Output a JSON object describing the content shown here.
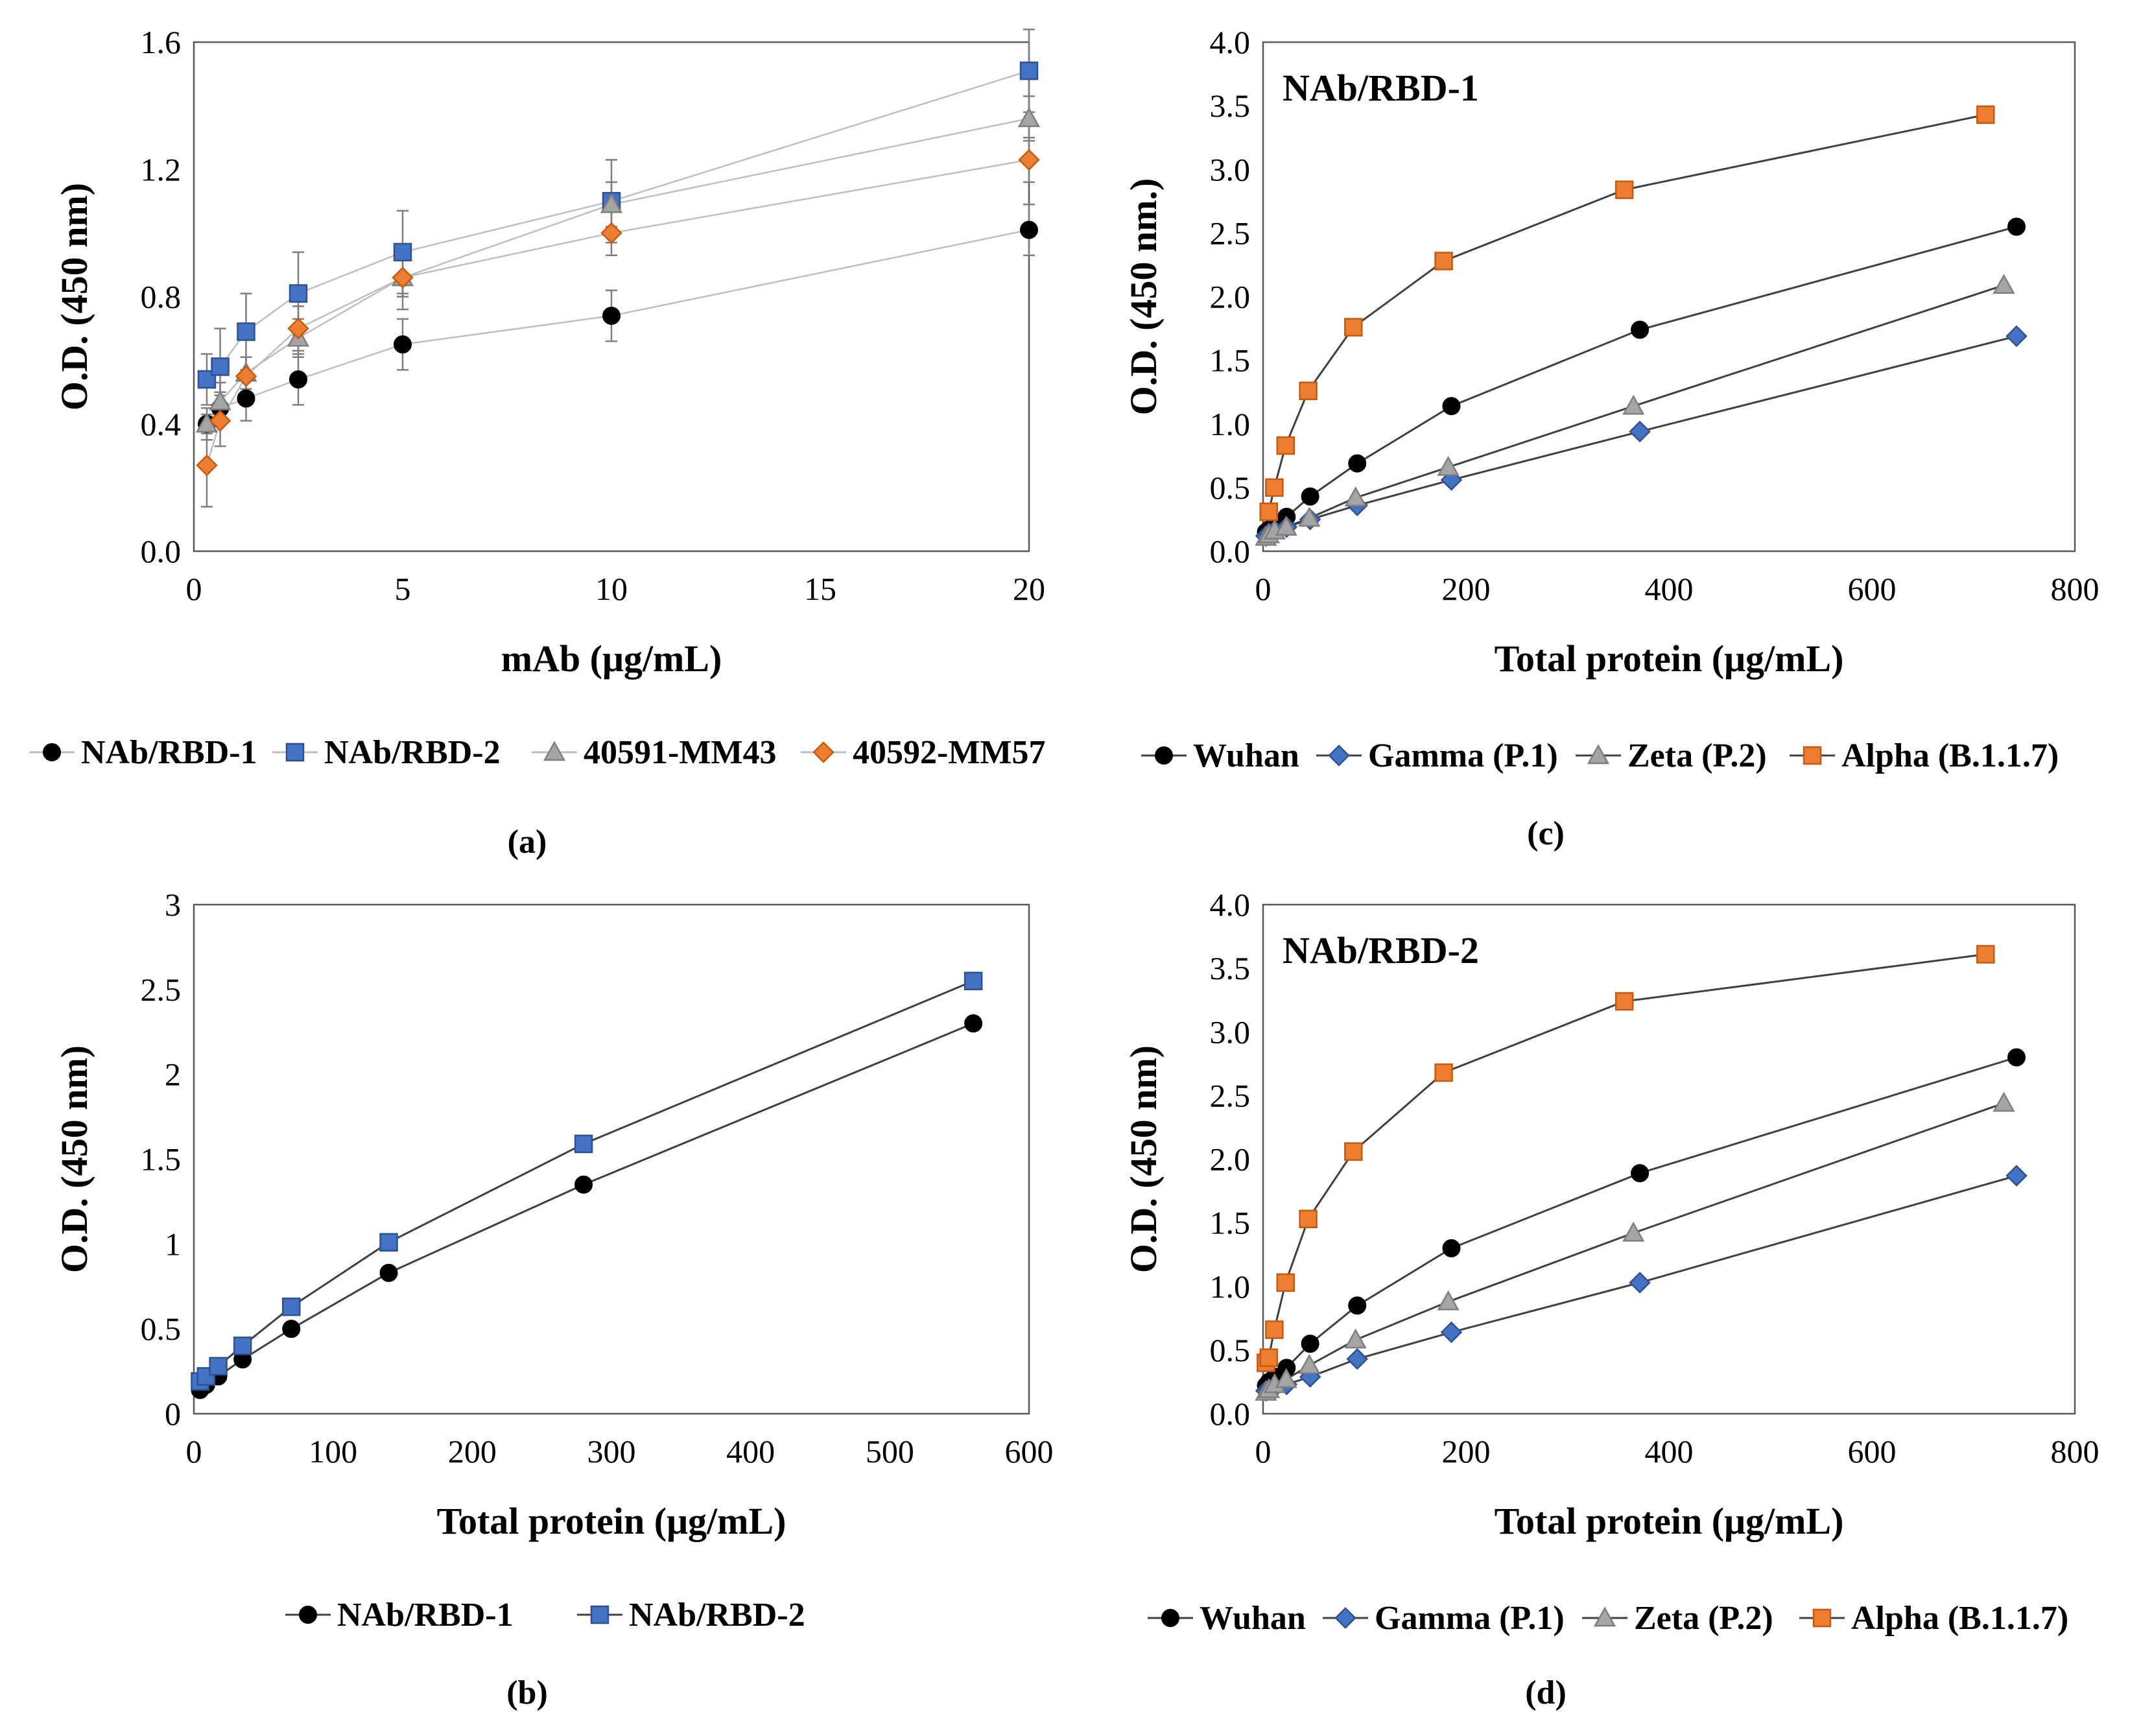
{
  "palette": {
    "black": "#000000",
    "blue": "#4472C4",
    "gray": "#A5A5A5",
    "orange": "#ED7D31",
    "frame": "#595959",
    "line": "#404040",
    "light_line": "#BFBFBF",
    "error_bar": "#7F7F7F"
  },
  "chart_data": [
    {
      "id": "a",
      "panel_label": "(a)",
      "type": "line",
      "title": "",
      "xlabel": "mAb (μg/mL)",
      "ylabel": "O.D. (450 nm)",
      "xlim": [
        0,
        20
      ],
      "ylim": [
        0,
        1.6
      ],
      "xticks": [
        0,
        5,
        10,
        15,
        20
      ],
      "xtick_labels": [
        "0",
        "5",
        "10",
        "15",
        "20"
      ],
      "yticks": [
        0,
        0.4,
        0.8,
        1.2,
        1.6
      ],
      "ytick_labels": [
        "0.0",
        "0.4",
        "0.8",
        "1.2",
        "1.6"
      ],
      "grid": false,
      "legend_position": "bottom",
      "line_style": "light",
      "series": [
        {
          "name": "NAb/RBD-1",
          "marker": "circle",
          "color": "#000000",
          "x": [
            0.31,
            0.63,
            1.25,
            2.5,
            5,
            10,
            20
          ],
          "y": [
            0.4,
            0.45,
            0.48,
            0.54,
            0.65,
            0.74,
            1.01
          ],
          "err": [
            0.03,
            0.05,
            0.07,
            0.08,
            0.08,
            0.08,
            0.08
          ]
        },
        {
          "name": "NAb/RBD-2",
          "marker": "square",
          "color": "#4472C4",
          "x": [
            0.31,
            0.63,
            1.25,
            2.5,
            5,
            10,
            20
          ],
          "y": [
            0.54,
            0.58,
            0.69,
            0.81,
            0.94,
            1.1,
            1.51
          ],
          "err": [
            0.08,
            0.12,
            0.12,
            0.13,
            0.13,
            0.13,
            0.13
          ]
        },
        {
          "name": "40591-MM43",
          "marker": "triangle",
          "color": "#A5A5A5",
          "x": [
            0.31,
            0.63,
            1.25,
            2.5,
            5,
            10,
            20
          ],
          "y": [
            0.4,
            0.47,
            0.56,
            0.67,
            0.86,
            1.09,
            1.36
          ],
          "err": [
            0.05,
            0.06,
            0.05,
            0.06,
            0.1,
            0.07,
            0.07
          ]
        },
        {
          "name": "40592-MM57",
          "marker": "diamond",
          "color": "#ED7D31",
          "x": [
            0.31,
            0.63,
            1.25,
            2.5,
            5,
            10,
            20
          ],
          "y": [
            0.27,
            0.41,
            0.55,
            0.7,
            0.86,
            1.0,
            1.23
          ],
          "err": [
            0.13,
            0.08,
            0.06,
            0.07,
            0.06,
            0.07,
            0.07
          ]
        }
      ]
    },
    {
      "id": "b",
      "panel_label": "(b)",
      "type": "line",
      "title": "",
      "xlabel": "Total protein (μg/mL)",
      "ylabel": "O.D. (450 nm)",
      "xlim": [
        0,
        600
      ],
      "ylim": [
        0,
        3
      ],
      "xticks": [
        0,
        100,
        200,
        300,
        400,
        500,
        600
      ],
      "xtick_labels": [
        "0",
        "100",
        "200",
        "300",
        "400",
        "500",
        "600"
      ],
      "yticks": [
        0,
        0.5,
        1,
        1.5,
        2,
        2.5,
        3
      ],
      "ytick_labels": [
        "0",
        "0.5",
        "1",
        "1.5",
        "2",
        "2.5",
        "3"
      ],
      "grid": false,
      "legend_position": "bottom",
      "line_style": "dark",
      "series": [
        {
          "name": "NAb/RBD-1",
          "marker": "circle",
          "color": "#000000",
          "x": [
            4.4,
            8.75,
            17.5,
            35,
            70,
            140,
            280,
            560
          ],
          "y": [
            0.14,
            0.17,
            0.22,
            0.32,
            0.5,
            0.83,
            1.35,
            2.3
          ]
        },
        {
          "name": "NAb/RBD-2",
          "marker": "square",
          "color": "#4472C4",
          "x": [
            4.4,
            8.75,
            17.5,
            35,
            70,
            140,
            280,
            560
          ],
          "y": [
            0.19,
            0.22,
            0.28,
            0.4,
            0.63,
            1.01,
            1.59,
            2.55
          ]
        }
      ]
    },
    {
      "id": "c",
      "panel_label": "(c)",
      "type": "line",
      "title": "NAb/RBD-1",
      "xlabel": "Total protein (μg/mL)",
      "ylabel": "O.D. (450 nm.)",
      "xlim": [
        0,
        800
      ],
      "ylim": [
        0,
        4
      ],
      "xticks": [
        0,
        200,
        400,
        600,
        800
      ],
      "xtick_labels": [
        "0",
        "200",
        "400",
        "600",
        "800"
      ],
      "yticks": [
        0,
        0.5,
        1,
        1.5,
        2,
        2.5,
        3,
        3.5,
        4
      ],
      "ytick_labels": [
        "0.0",
        "0.5",
        "1.0",
        "1.5",
        "2.0",
        "2.5",
        "3.0",
        "3.5",
        "4.0"
      ],
      "grid": false,
      "legend_position": "bottom",
      "line_style": "dark",
      "series": [
        {
          "name": "Wuhan",
          "marker": "circle",
          "color": "#000000",
          "x": [
            2.9,
            5.8,
            11.6,
            23.2,
            46.4,
            92.8,
            185.6,
            371.3,
            742.5
          ],
          "y": [
            0.15,
            0.17,
            0.21,
            0.27,
            0.43,
            0.69,
            1.14,
            1.74,
            2.55
          ]
        },
        {
          "name": "Gamma (P.1)",
          "marker": "diamond",
          "color": "#4472C4",
          "x": [
            2.9,
            5.8,
            11.6,
            23.2,
            46.4,
            92.8,
            185.6,
            371.3,
            742.5
          ],
          "y": [
            0.12,
            0.14,
            0.16,
            0.19,
            0.25,
            0.36,
            0.56,
            0.94,
            1.69
          ]
        },
        {
          "name": "Zeta (P.2)",
          "marker": "triangle",
          "color": "#A5A5A5",
          "x": [
            2.8,
            5.7,
            11.4,
            22.8,
            45.6,
            91.2,
            182.5,
            365,
            730
          ]
        },
        {
          "name": "Alpha (B.1.1.7)",
          "marker": "square",
          "color": "#ED7D31",
          "x": [
            2.8,
            5.6,
            11.1,
            22.2,
            44.5,
            89,
            178,
            356,
            712
          ]
        }
      ]
    },
    {
      "id": "d",
      "panel_label": "(d)",
      "type": "line",
      "title": "NAb/RBD-2",
      "xlabel": "Total protein (μg/mL)",
      "ylabel": "O.D. (450 nm)",
      "xlim": [
        0,
        800
      ],
      "ylim": [
        0,
        4
      ],
      "xticks": [
        0,
        200,
        400,
        600,
        800
      ],
      "xtick_labels": [
        "0",
        "200",
        "400",
        "600",
        "800"
      ],
      "yticks": [
        0,
        0.5,
        1,
        1.5,
        2,
        2.5,
        3,
        3.5,
        4
      ],
      "ytick_labels": [
        "0.0",
        "0.5",
        "1.0",
        "1.5",
        "2.0",
        "2.5",
        "3.0",
        "3.5",
        "4.0"
      ],
      "grid": false,
      "legend_position": "bottom",
      "line_style": "dark",
      "series": [
        {
          "name": "Wuhan",
          "marker": "circle",
          "color": "#000000",
          "x": [
            2.9,
            5.8,
            11.6,
            23.2,
            46.4,
            92.8,
            185.6,
            371.3,
            742.5
          ],
          "y": [
            0.22,
            0.25,
            0.29,
            0.36,
            0.55,
            0.85,
            1.3,
            1.89,
            2.8
          ]
        },
        {
          "name": "Gamma (P.1)",
          "marker": "diamond",
          "color": "#4472C4",
          "x": [
            2.9,
            5.8,
            11.6,
            23.2,
            46.4,
            92.8,
            185.6,
            371.3,
            742.5
          ],
          "y": [
            0.18,
            0.19,
            0.21,
            0.23,
            0.29,
            0.43,
            0.64,
            1.03,
            1.87
          ]
        },
        {
          "name": "Zeta (P.2)",
          "marker": "triangle",
          "color": "#A5A5A5",
          "x": [
            2.8,
            5.7,
            11.4,
            22.8,
            45.6,
            91.2,
            182.5,
            365,
            730
          ],
          "y": [
            0.17,
            0.19,
            0.23,
            0.27,
            0.38,
            0.58,
            0.88,
            1.42,
            2.44
          ]
        },
        {
          "name": "Alpha (B.1.1.7)",
          "marker": "square",
          "color": "#ED7D31",
          "x": [
            2.8,
            5.6,
            11.1,
            22.2,
            44.5,
            89,
            178,
            356,
            712
          ],
          "y": [
            0.4,
            0.44,
            0.66,
            1.03,
            1.53,
            2.06,
            2.68,
            3.24,
            3.61
          ]
        }
      ]
    }
  ]
}
